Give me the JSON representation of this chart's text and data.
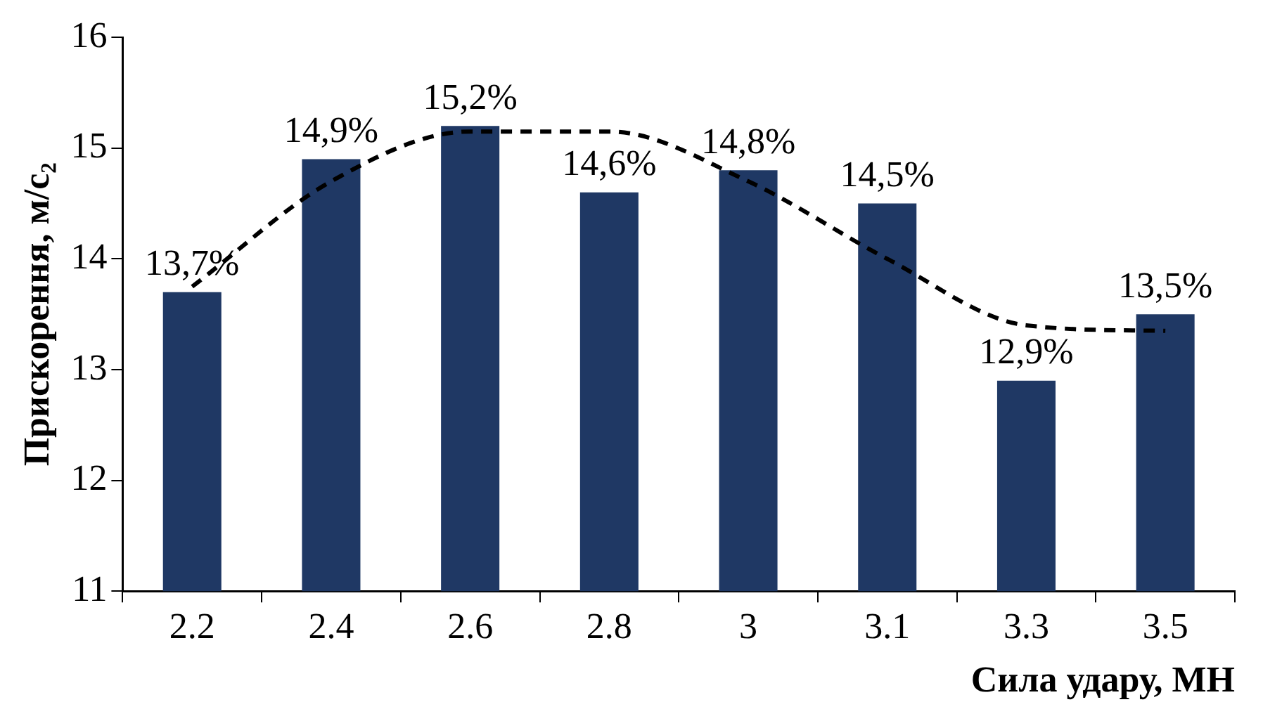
{
  "chart_data": {
    "type": "bar",
    "xlabel": "Сила удару, МН",
    "ylabel": "Прискорення, м/с₂",
    "categories": [
      "2.2",
      "2.4",
      "2.6",
      "2.8",
      "3",
      "3.1",
      "3.3",
      "3.5"
    ],
    "series": [
      {
        "color": "#1f3864",
        "values": [
          13.7,
          14.9,
          15.2,
          14.6,
          14.8,
          14.5,
          12.9,
          13.5
        ],
        "value_labels": [
          "13,7%",
          "14,9%",
          "15,2%",
          "14,6%",
          "14,8%",
          "14,5%",
          "12,9%",
          "13,5%"
        ]
      },
      {
        "type": "line",
        "color": "#000000",
        "line_style": "dashed",
        "marker": "none",
        "x": [
          "2.2",
          "2.4",
          "2.6",
          "2.8",
          "3",
          "3.1",
          "3.3",
          "3.5"
        ],
        "values": [
          13.75,
          14.7,
          15.15,
          15.15,
          14.7,
          14.0,
          13.4,
          13.35
        ]
      }
    ],
    "ylim": [
      11,
      16
    ],
    "yticks": [
      11,
      12,
      13,
      14,
      15,
      16
    ],
    "legend": false
  }
}
